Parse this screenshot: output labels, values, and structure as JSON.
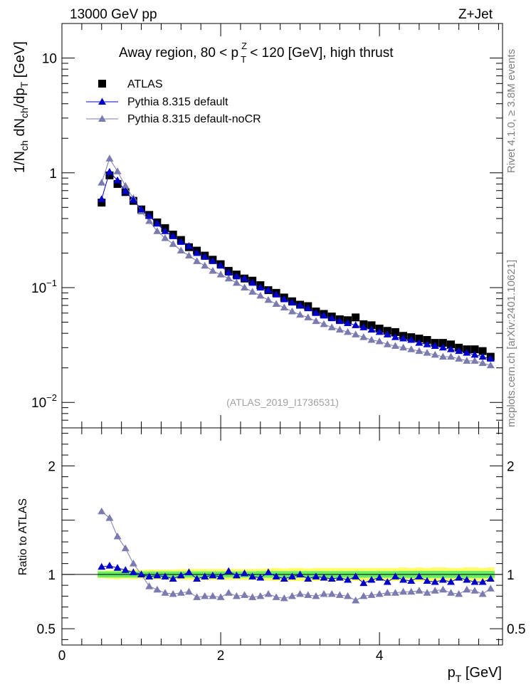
{
  "header": {
    "left": "13000 GeV pp",
    "right": "Z+Jet"
  },
  "side_labels": {
    "top": "Rivet 4.1.0, ≥ 3.8M events",
    "bottom": "mcplots.cern.ch [arXiv:2401.10621]"
  },
  "colors": {
    "atlas": "#000000",
    "pythia": "#0000cc",
    "nocr": "#7b7baf",
    "band_inner": "#66ee66",
    "band_outer": "#ffff66"
  },
  "chart_data": [
    {
      "type": "line",
      "title_parts": {
        "a": "Away region, 80 < p",
        "sup": "Z",
        "sub": "T",
        "b": " < 120 [GeV], high thrust"
      },
      "ylabel_parts": {
        "a": "1/N",
        "s1": "ch",
        "b": " dN",
        "s2": "ch",
        "c": "/dp",
        "s3": "T",
        "d": " [GeV]"
      },
      "yscale": "log",
      "ylim": [
        0.006,
        20
      ],
      "xlim": [
        0,
        5.55
      ],
      "yticks": [
        {
          "v": 10,
          "base": "10",
          "exp": ""
        },
        {
          "v": 1,
          "base": "1",
          "exp": ""
        },
        {
          "v": 0.1,
          "base": "10",
          "exp": "−1"
        },
        {
          "v": 0.01,
          "base": "10",
          "exp": "−2"
        }
      ],
      "reference": "(ATLAS_2019_I1736531)",
      "legend": [
        "ATLAS",
        "Pythia 8.315 default",
        "Pythia 8.315 default-noCR"
      ],
      "x": [
        0.5,
        0.6,
        0.7,
        0.8,
        0.9,
        1.0,
        1.1,
        1.2,
        1.3,
        1.4,
        1.5,
        1.6,
        1.7,
        1.8,
        1.9,
        2.0,
        2.1,
        2.2,
        2.3,
        2.4,
        2.5,
        2.6,
        2.7,
        2.8,
        2.9,
        3.0,
        3.1,
        3.2,
        3.3,
        3.4,
        3.5,
        3.6,
        3.7,
        3.8,
        3.9,
        4.0,
        4.1,
        4.2,
        4.3,
        4.4,
        4.5,
        4.6,
        4.7,
        4.8,
        4.9,
        5.0,
        5.1,
        5.2,
        5.3,
        5.4
      ],
      "series": [
        {
          "name": "ATLAS",
          "values": [
            0.55,
            0.95,
            0.8,
            0.68,
            0.57,
            0.48,
            0.43,
            0.37,
            0.33,
            0.29,
            0.26,
            0.225,
            0.21,
            0.19,
            0.175,
            0.16,
            0.14,
            0.13,
            0.12,
            0.115,
            0.105,
            0.095,
            0.09,
            0.082,
            0.076,
            0.071,
            0.069,
            0.062,
            0.059,
            0.056,
            0.053,
            0.052,
            0.055,
            0.048,
            0.047,
            0.044,
            0.042,
            0.041,
            0.038,
            0.037,
            0.036,
            0.035,
            0.033,
            0.033,
            0.032,
            0.03,
            0.029,
            0.029,
            0.028,
            0.025
          ]
        },
        {
          "name": "Pythia 8.315 default",
          "values": [
            0.59,
            1.02,
            0.86,
            0.69,
            0.58,
            0.48,
            0.42,
            0.36,
            0.31,
            0.28,
            0.25,
            0.23,
            0.2,
            0.185,
            0.17,
            0.155,
            0.135,
            0.125,
            0.12,
            0.11,
            0.1,
            0.095,
            0.087,
            0.079,
            0.074,
            0.07,
            0.066,
            0.06,
            0.057,
            0.054,
            0.051,
            0.049,
            0.047,
            0.045,
            0.043,
            0.041,
            0.039,
            0.037,
            0.036,
            0.035,
            0.033,
            0.032,
            0.031,
            0.03,
            0.029,
            0.028,
            0.027,
            0.026,
            0.025,
            0.024
          ]
        },
        {
          "name": "Pythia 8.315 default-noCR",
          "values": [
            0.82,
            1.33,
            1.03,
            0.77,
            0.6,
            0.46,
            0.38,
            0.31,
            0.27,
            0.24,
            0.21,
            0.19,
            0.17,
            0.155,
            0.14,
            0.13,
            0.12,
            0.11,
            0.1,
            0.092,
            0.085,
            0.078,
            0.072,
            0.067,
            0.062,
            0.058,
            0.055,
            0.051,
            0.048,
            0.045,
            0.043,
            0.041,
            0.039,
            0.037,
            0.035,
            0.034,
            0.032,
            0.031,
            0.03,
            0.029,
            0.028,
            0.027,
            0.026,
            0.025,
            0.025,
            0.024,
            0.023,
            0.023,
            0.022,
            0.021
          ]
        }
      ]
    },
    {
      "type": "line",
      "ylabel": "Ratio to ATLAS",
      "xlabel_parts": {
        "a": "p",
        "sub": "T",
        "b": " [GeV]"
      },
      "ylim": [
        0.35,
        2.35
      ],
      "xlim": [
        0,
        5.55
      ],
      "yticks": [
        2,
        1,
        0.5
      ],
      "ytick_labels": [
        "2",
        "1",
        "0.5"
      ],
      "xticks": [
        0,
        2,
        4
      ],
      "xtick_labels": [
        "0",
        "2",
        "4"
      ],
      "x": [
        0.5,
        0.6,
        0.7,
        0.8,
        0.9,
        1.0,
        1.1,
        1.2,
        1.3,
        1.4,
        1.5,
        1.6,
        1.7,
        1.8,
        1.9,
        2.0,
        2.1,
        2.2,
        2.3,
        2.4,
        2.5,
        2.6,
        2.7,
        2.8,
        2.9,
        3.0,
        3.1,
        3.2,
        3.3,
        3.4,
        3.5,
        3.6,
        3.7,
        3.8,
        3.9,
        4.0,
        4.1,
        4.2,
        4.3,
        4.4,
        4.5,
        4.6,
        4.7,
        4.8,
        4.9,
        5.0,
        5.1,
        5.2,
        5.3,
        5.4
      ],
      "series": [
        {
          "name": "Pythia 8.315 default",
          "values": [
            1.07,
            1.08,
            1.06,
            1.04,
            1.02,
            1.0,
            0.98,
            0.99,
            0.98,
            0.96,
            0.99,
            1.02,
            0.96,
            0.98,
            0.99,
            0.98,
            1.03,
            0.99,
            1.01,
            0.98,
            0.97,
            1.02,
            0.98,
            0.96,
            0.98,
            1.0,
            0.96,
            0.98,
            0.97,
            0.96,
            0.97,
            0.95,
            0.98,
            0.92,
            0.95,
            0.97,
            0.93,
            0.98,
            0.95,
            0.94,
            0.98,
            0.94,
            0.93,
            0.95,
            0.93,
            0.97,
            0.95,
            0.93,
            0.93,
            0.96
          ]
        },
        {
          "name": "Pythia 8.315 default-noCR",
          "values": [
            1.58,
            1.52,
            1.35,
            1.24,
            1.1,
            1.0,
            0.89,
            0.86,
            0.83,
            0.82,
            0.83,
            0.84,
            0.79,
            0.8,
            0.8,
            0.79,
            0.83,
            0.8,
            0.81,
            0.79,
            0.8,
            0.82,
            0.79,
            0.78,
            0.8,
            0.82,
            0.81,
            0.8,
            0.82,
            0.82,
            0.81,
            0.8,
            0.76,
            0.8,
            0.81,
            0.82,
            0.83,
            0.83,
            0.84,
            0.84,
            0.85,
            0.83,
            0.85,
            0.86,
            0.83,
            0.82,
            0.86,
            0.85,
            0.82,
            0.87
          ]
        }
      ],
      "band_inner": [
        0.028,
        0.028,
        0.028,
        0.028,
        0.028,
        0.028,
        0.028,
        0.028,
        0.028,
        0.028,
        0.028,
        0.028,
        0.028,
        0.028,
        0.028,
        0.028,
        0.028,
        0.028,
        0.028,
        0.028,
        0.03,
        0.03,
        0.03,
        0.03,
        0.03,
        0.03,
        0.03,
        0.03,
        0.03,
        0.03,
        0.03,
        0.03,
        0.03,
        0.03,
        0.03,
        0.03,
        0.03,
        0.03,
        0.032,
        0.032,
        0.032,
        0.032,
        0.032,
        0.032,
        0.032,
        0.032,
        0.032,
        0.032,
        0.032,
        0.032
      ],
      "band_outer": [
        0.035,
        0.04,
        0.045,
        0.04,
        0.045,
        0.04,
        0.045,
        0.045,
        0.045,
        0.045,
        0.048,
        0.05,
        0.05,
        0.05,
        0.05,
        0.05,
        0.05,
        0.05,
        0.05,
        0.05,
        0.052,
        0.055,
        0.06,
        0.055,
        0.06,
        0.06,
        0.055,
        0.06,
        0.06,
        0.06,
        0.06,
        0.06,
        0.06,
        0.06,
        0.06,
        0.06,
        0.06,
        0.06,
        0.065,
        0.06,
        0.065,
        0.06,
        0.065,
        0.065,
        0.06,
        0.06,
        0.065,
        0.065,
        0.06,
        0.065
      ]
    }
  ]
}
